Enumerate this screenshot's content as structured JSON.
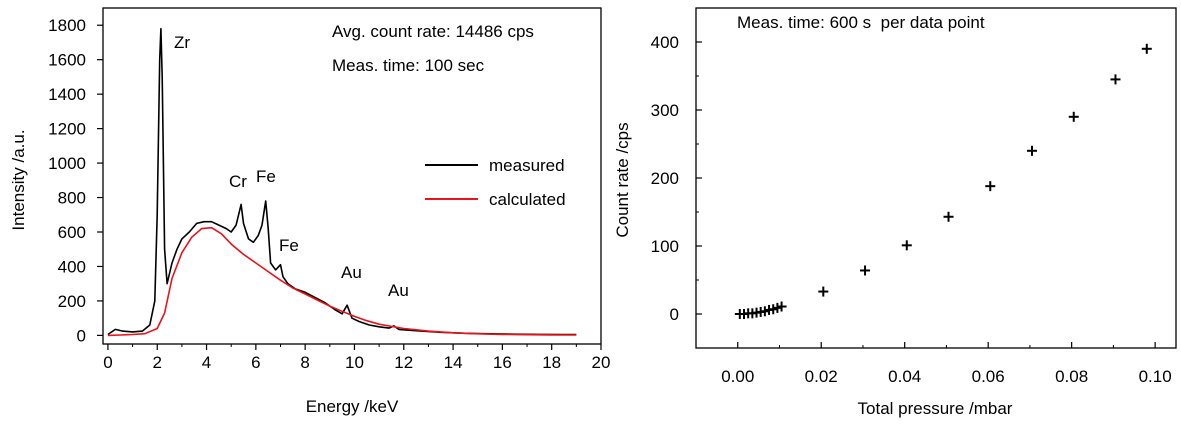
{
  "colors": {
    "measured": "#000000",
    "calculated": "#e8131b",
    "axes": "#000000"
  },
  "chart_data": [
    {
      "type": "line",
      "xlabel": "Energy /keV",
      "ylabel": "Intensity /a.u.",
      "xlim": [
        -0.2,
        20
      ],
      "ylim": [
        -50,
        1900
      ],
      "xticks": [
        "0",
        "2",
        "4",
        "6",
        "8",
        "10",
        "12",
        "14",
        "16",
        "18",
        "20"
      ],
      "yticks": [
        "0",
        "200",
        "400",
        "600",
        "800",
        "1000",
        "1200",
        "1400",
        "1600",
        "1800"
      ],
      "annotations": [
        "Avg. count rate: 14486 cps",
        "Meas. time: 100 sec"
      ],
      "peak_labels": [
        "Zr",
        "Cr",
        "Fe",
        "Fe",
        "Au",
        "Au"
      ],
      "legend": {
        "position": "right",
        "entries": [
          "measured",
          "calculated"
        ]
      },
      "series": [
        {
          "name": "measured",
          "color": "#000000",
          "x": [
            0.0,
            0.3,
            0.6,
            1.0,
            1.4,
            1.7,
            1.9,
            2.0,
            2.1,
            2.15,
            2.2,
            2.3,
            2.4,
            2.6,
            2.8,
            3.0,
            3.3,
            3.6,
            3.9,
            4.2,
            4.5,
            4.8,
            5.0,
            5.2,
            5.3,
            5.4,
            5.5,
            5.7,
            5.9,
            6.1,
            6.25,
            6.4,
            6.5,
            6.6,
            6.8,
            7.0,
            7.1,
            7.3,
            7.6,
            8.0,
            8.4,
            8.8,
            9.2,
            9.5,
            9.7,
            9.9,
            10.2,
            10.6,
            11.0,
            11.4,
            11.6,
            11.8,
            12.2,
            12.8,
            13.5,
            14.5,
            15.5,
            16.5,
            17.5,
            18.5,
            19.0
          ],
          "y": [
            5,
            35,
            25,
            20,
            25,
            60,
            200,
            700,
            1600,
            1780,
            1500,
            500,
            300,
            420,
            500,
            560,
            600,
            650,
            660,
            660,
            640,
            620,
            600,
            640,
            700,
            760,
            650,
            560,
            540,
            580,
            640,
            780,
            620,
            420,
            380,
            410,
            340,
            300,
            270,
            250,
            220,
            190,
            150,
            125,
            175,
            100,
            80,
            60,
            50,
            42,
            55,
            35,
            30,
            24,
            18,
            12,
            9,
            7,
            6,
            5,
            5
          ]
        },
        {
          "name": "calculated",
          "color": "#e8131b",
          "x": [
            0.0,
            0.5,
            1.0,
            1.5,
            2.0,
            2.3,
            2.6,
            3.0,
            3.4,
            3.8,
            4.2,
            4.6,
            5.0,
            5.5,
            6.0,
            6.5,
            7.0,
            7.5,
            8.0,
            8.5,
            9.0,
            9.5,
            10.0,
            10.5,
            11.0,
            12.0,
            13.0,
            14.0,
            15.0,
            16.0,
            17.0,
            18.0,
            19.0
          ],
          "y": [
            0,
            2,
            5,
            10,
            40,
            130,
            330,
            480,
            570,
            620,
            625,
            590,
            530,
            470,
            420,
            370,
            320,
            275,
            240,
            205,
            170,
            140,
            110,
            85,
            65,
            40,
            25,
            15,
            9,
            6,
            4,
            3,
            2
          ]
        }
      ]
    },
    {
      "type": "scatter",
      "xlabel": "Total pressure /mbar",
      "ylabel": "Count rate /cps",
      "xlim": [
        -0.01,
        0.105
      ],
      "ylim": [
        -50,
        450
      ],
      "xticks": [
        "0.00",
        "0.02",
        "0.04",
        "0.06",
        "0.08",
        "0.10"
      ],
      "yticks": [
        "0",
        "100",
        "200",
        "300",
        "400"
      ],
      "annotations": [
        "Meas. time: 600 s  per data point"
      ],
      "series": [
        {
          "marker": "+",
          "x": [
            0.0005,
            0.0015,
            0.0025,
            0.0035,
            0.0045,
            0.0055,
            0.0065,
            0.0075,
            0.0085,
            0.0095,
            0.0105,
            0.0205,
            0.0305,
            0.0405,
            0.0505,
            0.0605,
            0.0705,
            0.0805,
            0.0905,
            0.098
          ],
          "y": [
            0,
            0,
            1,
            1,
            2,
            3,
            4,
            6,
            7,
            9,
            11,
            33,
            64,
            101,
            143,
            188,
            240,
            290,
            345,
            390
          ]
        }
      ]
    }
  ]
}
